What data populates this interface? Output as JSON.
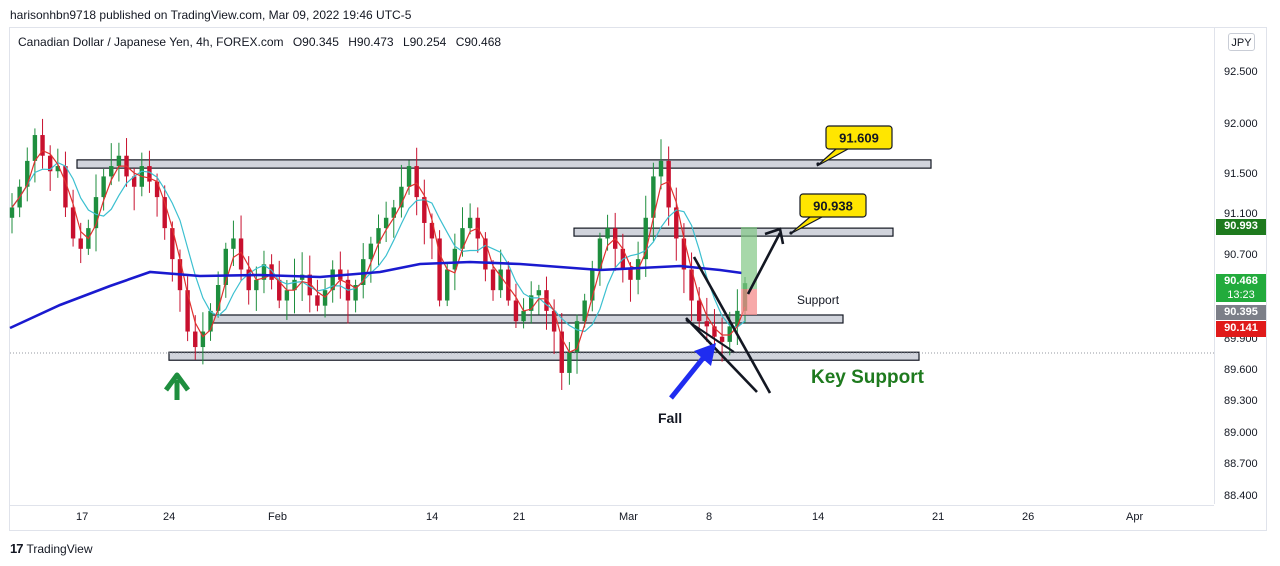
{
  "publisher": "harisonhbn9718 published on TradingView.com, Mar 09, 2022 19:46 UTC-5",
  "symbol": {
    "name": "Canadian Dollar / Japanese Yen, 4h, FOREX.com",
    "open": "O90.345",
    "high": "H90.473",
    "low": "L90.254",
    "close": "C90.468"
  },
  "currency_button": "JPY",
  "price_ticks": [
    "92.500",
    "92.000",
    "91.500",
    "91.100",
    "90.700",
    "90.300",
    "89.900",
    "89.600",
    "89.300",
    "89.000",
    "88.700",
    "88.400"
  ],
  "price_badges": [
    {
      "label": "90.993",
      "color": "#1e7a1e"
    },
    {
      "label": "90.468",
      "sub": "13:23",
      "color": "#22ab3c"
    },
    {
      "label": "90.395",
      "color": "#7c7f88"
    },
    {
      "label": "90.141",
      "color": "#e01a1a"
    }
  ],
  "time_ticks": [
    "17",
    "24",
    "Feb",
    "14",
    "21",
    "Mar",
    "8",
    "14",
    "21",
    "26",
    "Apr"
  ],
  "annotations": {
    "callout_top": "91.609",
    "callout_mid": "90.938",
    "support_label": "Support",
    "key_support_label": "Key Support",
    "fall_label": "Fall"
  },
  "footer": "TradingView",
  "colors": {
    "up_candle": "#1e8e3e",
    "down_candle": "#c8102e",
    "ma_long": "#1a1acf",
    "ma_fast": "#e0302e",
    "ma_mid": "#3cc0d0",
    "callout_fill": "#ffe600",
    "zone_fill": "#d1d4dc",
    "key_support_text": "#1e7a1e",
    "arrow_blue": "#1f2cf0"
  },
  "chart_data": {
    "type": "candlestick",
    "instrument": "CADJPY",
    "timeframe": "4h",
    "last": {
      "open": 90.345,
      "high": 90.473,
      "low": 90.254,
      "close": 90.468
    },
    "ylim": [
      88.4,
      92.7
    ],
    "horizontal_zones": [
      {
        "top": 91.66,
        "bottom": 91.58,
        "label": "91.609"
      },
      {
        "top": 91.0,
        "bottom": 90.94,
        "label": "90.938"
      },
      {
        "top": 90.16,
        "bottom": 90.1,
        "label": "Support"
      },
      {
        "top": 89.8,
        "bottom": 89.73,
        "label": "Key Support"
      }
    ],
    "close_series": [
      91.2,
      91.4,
      91.65,
      91.9,
      91.7,
      91.55,
      91.6,
      91.2,
      90.9,
      90.8,
      91.0,
      91.3,
      91.5,
      91.6,
      91.7,
      91.5,
      91.4,
      91.6,
      91.45,
      91.3,
      91.0,
      90.7,
      90.4,
      90.0,
      89.85,
      90.0,
      90.2,
      90.45,
      90.8,
      90.9,
      90.6,
      90.4,
      90.5,
      90.65,
      90.5,
      90.3,
      90.4,
      90.5,
      90.55,
      90.35,
      90.25,
      90.4,
      90.6,
      90.5,
      90.3,
      90.45,
      90.7,
      90.85,
      91.0,
      91.1,
      91.2,
      91.4,
      91.6,
      91.3,
      91.05,
      90.9,
      90.3,
      90.6,
      90.8,
      91.0,
      91.1,
      90.9,
      90.6,
      90.4,
      90.6,
      90.3,
      90.1,
      90.2,
      90.35,
      90.4,
      90.2,
      90.0,
      89.6,
      89.8,
      90.1,
      90.3,
      90.6,
      90.9,
      91.0,
      90.8,
      90.6,
      90.5,
      90.7,
      91.1,
      91.5,
      91.65,
      91.2,
      90.9,
      90.6,
      90.3,
      90.1,
      90.05,
      89.95,
      89.9,
      90.05,
      90.2,
      90.468
    ]
  }
}
